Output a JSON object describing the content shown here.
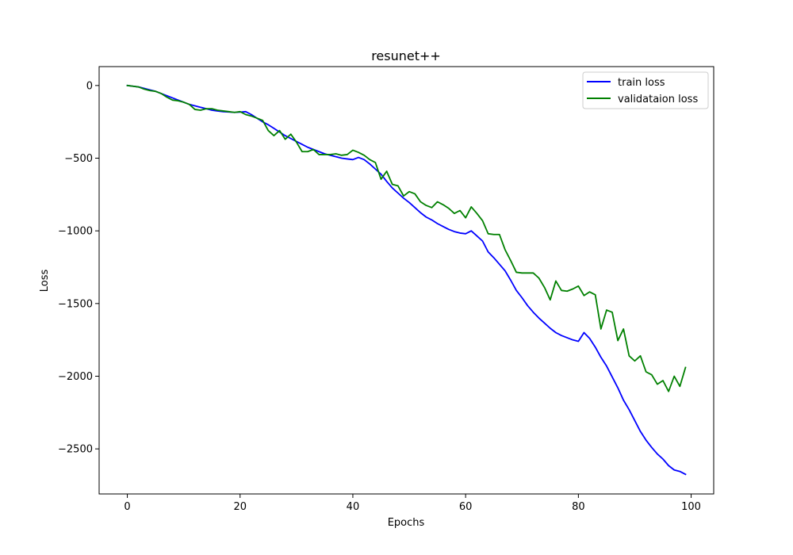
{
  "chart_data": {
    "type": "line",
    "title": "resunet++",
    "xlabel": "Epochs",
    "ylabel": "Loss",
    "xlim": [
      -5,
      104
    ],
    "ylim": [
      -2810,
      130
    ],
    "xticks": [
      0,
      20,
      40,
      60,
      80,
      100
    ],
    "yticks": [
      0,
      -500,
      -1000,
      -1500,
      -2000,
      -2500
    ],
    "ytick_labels": [
      "0",
      "−500",
      "−1000",
      "−1500",
      "−2000",
      "−2500"
    ],
    "grid": false,
    "legend_position": "upper-right",
    "x": [
      0,
      1,
      2,
      3,
      4,
      5,
      6,
      7,
      8,
      9,
      10,
      11,
      12,
      13,
      14,
      15,
      16,
      17,
      18,
      19,
      20,
      21,
      22,
      23,
      24,
      25,
      26,
      27,
      28,
      29,
      30,
      31,
      32,
      33,
      34,
      35,
      36,
      37,
      38,
      39,
      40,
      41,
      42,
      43,
      44,
      45,
      46,
      47,
      48,
      49,
      50,
      51,
      52,
      53,
      54,
      55,
      56,
      57,
      58,
      59,
      60,
      61,
      62,
      63,
      64,
      65,
      66,
      67,
      68,
      69,
      70,
      71,
      72,
      73,
      74,
      75,
      76,
      77,
      78,
      79,
      80,
      81,
      82,
      83,
      84,
      85,
      86,
      87,
      88,
      89,
      90,
      91,
      92,
      93,
      94,
      95,
      96,
      97,
      98,
      99
    ],
    "series": [
      {
        "name": "train loss",
        "color": "#0000ff",
        "values": [
          0,
          -5,
          -10,
          -20,
          -30,
          -40,
          -55,
          -70,
          -85,
          -100,
          -115,
          -130,
          -140,
          -150,
          -160,
          -170,
          -175,
          -180,
          -182,
          -185,
          -183,
          -180,
          -200,
          -225,
          -250,
          -270,
          -295,
          -320,
          -345,
          -365,
          -385,
          -405,
          -425,
          -440,
          -455,
          -470,
          -480,
          -490,
          -500,
          -505,
          -510,
          -495,
          -510,
          -540,
          -575,
          -610,
          -660,
          -705,
          -740,
          -775,
          -805,
          -840,
          -875,
          -905,
          -925,
          -950,
          -970,
          -990,
          -1005,
          -1015,
          -1020,
          -1000,
          -1035,
          -1070,
          -1145,
          -1185,
          -1230,
          -1275,
          -1340,
          -1410,
          -1460,
          -1515,
          -1560,
          -1600,
          -1635,
          -1670,
          -1700,
          -1720,
          -1735,
          -1750,
          -1760,
          -1700,
          -1740,
          -1800,
          -1870,
          -1930,
          -2005,
          -2080,
          -2165,
          -2230,
          -2305,
          -2380,
          -2440,
          -2490,
          -2535,
          -2570,
          -2615,
          -2645,
          -2655,
          -2675
        ]
      },
      {
        "name": "validataion loss",
        "color": "#008000",
        "values": [
          0,
          -5,
          -10,
          -25,
          -35,
          -40,
          -55,
          -80,
          -100,
          -105,
          -115,
          -130,
          -165,
          -170,
          -160,
          -160,
          -170,
          -175,
          -180,
          -185,
          -180,
          -200,
          -210,
          -225,
          -240,
          -310,
          -345,
          -310,
          -370,
          -335,
          -390,
          -455,
          -455,
          -440,
          -475,
          -475,
          -475,
          -470,
          -480,
          -475,
          -445,
          -460,
          -480,
          -510,
          -530,
          -645,
          -590,
          -680,
          -690,
          -760,
          -730,
          -745,
          -800,
          -825,
          -840,
          -800,
          -820,
          -845,
          -880,
          -860,
          -910,
          -835,
          -880,
          -930,
          -1020,
          -1025,
          -1025,
          -1130,
          -1205,
          -1285,
          -1290,
          -1290,
          -1290,
          -1325,
          -1390,
          -1475,
          -1345,
          -1410,
          -1415,
          -1400,
          -1380,
          -1445,
          -1420,
          -1440,
          -1675,
          -1545,
          -1560,
          -1755,
          -1675,
          -1860,
          -1895,
          -1860,
          -1970,
          -1990,
          -2055,
          -2030,
          -2105,
          -2000,
          -2070,
          -1940
        ]
      }
    ]
  }
}
